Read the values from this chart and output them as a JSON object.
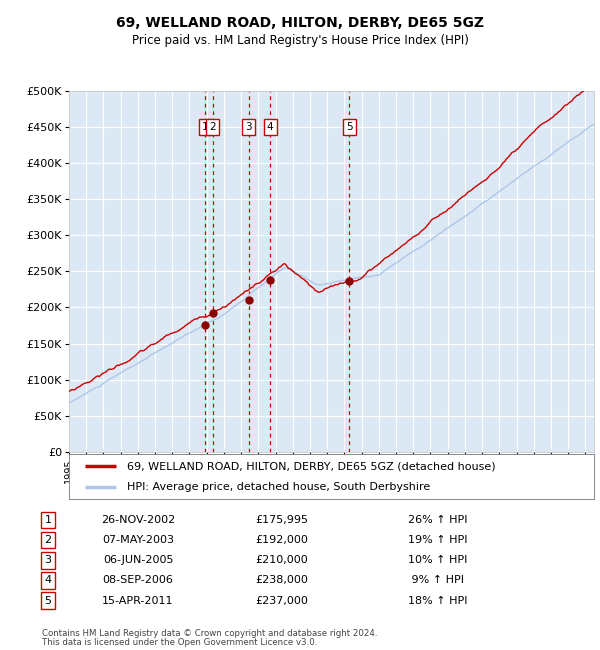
{
  "title": "69, WELLAND ROAD, HILTON, DERBY, DE65 5GZ",
  "subtitle": "Price paid vs. HM Land Registry's House Price Index (HPI)",
  "legend_line1": "69, WELLAND ROAD, HILTON, DERBY, DE65 5GZ (detached house)",
  "legend_line2": "HPI: Average price, detached house, South Derbyshire",
  "footer1": "Contains HM Land Registry data © Crown copyright and database right 2024.",
  "footer2": "This data is licensed under the Open Government Licence v3.0.",
  "hpi_color": "#aec6e8",
  "price_color": "#cc0000",
  "marker_color": "#8b0000",
  "dashed_line_color": "#cc0000",
  "background_color": "#dce9f5",
  "grid_color": "#ffffff",
  "ylim": [
    0,
    500000
  ],
  "yticks": [
    0,
    50000,
    100000,
    150000,
    200000,
    250000,
    300000,
    350000,
    400000,
    450000,
    500000
  ],
  "xlim_start": 1995.0,
  "xlim_end": 2025.5,
  "transactions": [
    {
      "num": 1,
      "date": "26-NOV-2002",
      "date_float": 2002.9,
      "price": 175995
    },
    {
      "num": 2,
      "date": "07-MAY-2003",
      "date_float": 2003.35,
      "price": 192000
    },
    {
      "num": 3,
      "date": "06-JUN-2005",
      "date_float": 2005.43,
      "price": 210000
    },
    {
      "num": 4,
      "date": "08-SEP-2006",
      "date_float": 2006.69,
      "price": 238000
    },
    {
      "num": 5,
      "date": "15-APR-2011",
      "date_float": 2011.29,
      "price": 237000
    }
  ],
  "table_rows": [
    {
      "num": 1,
      "date": "26-NOV-2002",
      "price": "£175,995",
      "pct": "26% ↑ HPI"
    },
    {
      "num": 2,
      "date": "07-MAY-2003",
      "price": "£192,000",
      "pct": "19% ↑ HPI"
    },
    {
      "num": 3,
      "date": "06-JUN-2005",
      "price": "£210,000",
      "pct": "10% ↑ HPI"
    },
    {
      "num": 4,
      "date": "08-SEP-2006",
      "price": "£238,000",
      "pct": " 9% ↑ HPI"
    },
    {
      "num": 5,
      "date": "15-APR-2011",
      "price": "£237,000",
      "pct": "18% ↑ HPI"
    }
  ],
  "hpi_seed": 10,
  "price_seed": 20
}
